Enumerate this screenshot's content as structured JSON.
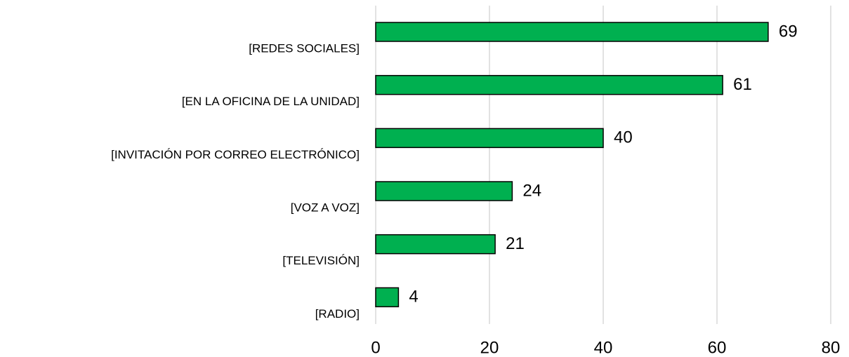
{
  "chart_data": {
    "type": "bar",
    "orientation": "horizontal",
    "categories": [
      "[REDES SOCIALES]",
      "[EN LA OFICINA DE LA UNIDAD]",
      "[INVITACIÓN POR CORREO ELECTRÓNICO]",
      "[VOZ A VOZ]",
      "[TELEVISIÓN]",
      "[RADIO]"
    ],
    "values": [
      69,
      61,
      40,
      24,
      21,
      4
    ],
    "color": "#00b050",
    "xlim": [
      0,
      80
    ],
    "xticks": [
      0,
      20,
      40,
      60,
      80
    ],
    "grid": true
  }
}
